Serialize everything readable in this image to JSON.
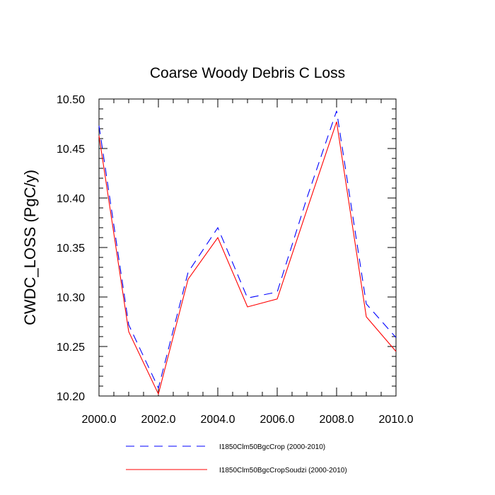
{
  "chart_data": {
    "type": "line",
    "title": "Coarse Woody Debris C Loss",
    "xlabel": "",
    "ylabel": "CWDC_LOSS  (PgC/y)",
    "xlim": [
      2000.0,
      2010.0
    ],
    "ylim": [
      10.2,
      10.5
    ],
    "x_ticks": [
      "2000.0",
      "2002.0",
      "2004.0",
      "2006.0",
      "2008.0",
      "2010.0"
    ],
    "y_ticks": [
      "10.20",
      "10.25",
      "10.30",
      "10.35",
      "10.40",
      "10.45",
      "10.50"
    ],
    "x": [
      2000,
      2001,
      2002,
      2003,
      2004,
      2005,
      2006,
      2007,
      2008,
      2009,
      2010
    ],
    "series": [
      {
        "name": "I1850Clm50BgcCrop (2000-2010)",
        "color": "#0000ff",
        "style": "dashed",
        "values": [
          10.473,
          10.272,
          10.208,
          10.325,
          10.37,
          10.299,
          10.305,
          10.4,
          10.488,
          10.293,
          10.259
        ]
      },
      {
        "name": "I1850Clm50BgcCropSoudzi (2000-2010)",
        "color": "#ff0000",
        "style": "solid",
        "values": [
          10.463,
          10.265,
          10.202,
          10.318,
          10.36,
          10.29,
          10.298,
          10.388,
          10.477,
          10.28,
          10.245
        ]
      }
    ],
    "grid": false,
    "legend_position": "bottom-center"
  }
}
